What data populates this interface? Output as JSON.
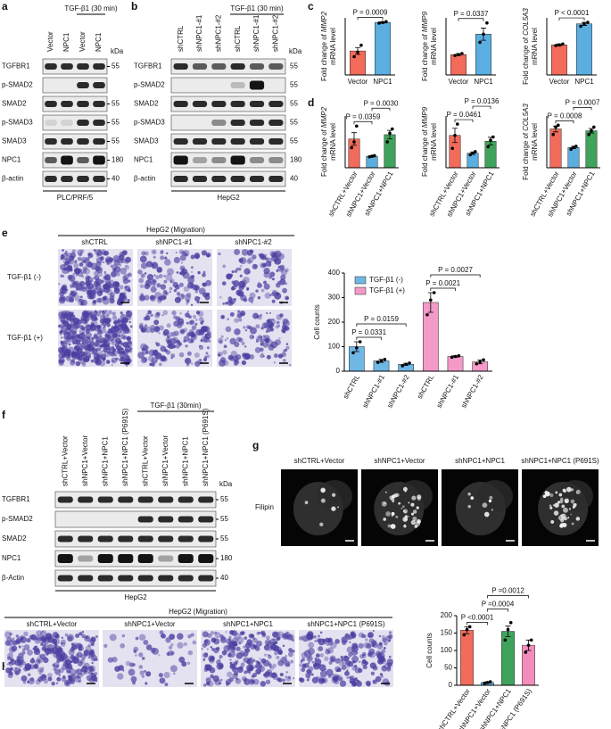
{
  "panels": {
    "a": {
      "letter": "a",
      "treatment": "TGF-β1 (30 min)",
      "lanes": [
        "Vector",
        "NPC1",
        "Vector",
        "NPC1"
      ],
      "unit": "kDa",
      "rows": [
        {
          "name": "TGFBR1",
          "kda": "55"
        },
        {
          "name": "p-SMAD2"
        },
        {
          "name": "SMAD2",
          "kda": "55"
        },
        {
          "name": "p-SMAD3",
          "kda": "55"
        },
        {
          "name": "SMAD3",
          "kda": "55"
        },
        {
          "name": "NPC1",
          "kda": "180"
        },
        {
          "name": "β-actin",
          "kda": "40"
        }
      ],
      "cell_line": "PLC/PRF/5"
    },
    "b": {
      "letter": "b",
      "treatment": "TGF-β1 (30 min)",
      "lanes": [
        "shCTRL",
        "shNPC1-#1",
        "shNPC1-#2",
        "shCTRL",
        "shNPC1-#1",
        "shNPC1-#2"
      ],
      "unit": "kDa",
      "rows": [
        {
          "name": "TGFBR1",
          "kda": "55"
        },
        {
          "name": "p-SMAD2",
          "kda": "55"
        },
        {
          "name": "SMAD2",
          "kda": "55"
        },
        {
          "name": "p-SMAD3",
          "kda": "55"
        },
        {
          "name": "SMAD3",
          "kda": "55"
        },
        {
          "name": "NPC1",
          "kda": "180"
        },
        {
          "name": "β-actin",
          "kda": "40"
        }
      ],
      "cell_line": "HepG2"
    },
    "c": {
      "letter": "c",
      "charts": [
        {
          "type": "bar",
          "ylabel": {
            "prefix": "Fold change of",
            "gene": "MMP2",
            "suffix": "mRNA level"
          },
          "categories": [
            "Vector",
            "NPC1"
          ],
          "values": [
            1.05,
            2.3
          ],
          "errors": [
            0.15,
            0.03
          ],
          "points": [
            [
              0.8,
              1.0,
              1.3
            ],
            [
              2.27,
              2.3,
              2.33
            ]
          ],
          "colors": [
            "#f26b5b",
            "#5aaee0"
          ],
          "ylim": [
            0,
            2.5
          ],
          "comparisons": [
            {
              "label": "P = 0.0009",
              "between": [
                0,
                1
              ]
            }
          ]
        },
        {
          "type": "bar",
          "ylabel": {
            "prefix": "Fold change of",
            "gene": "MMP9",
            "suffix": "mRNA level"
          },
          "categories": [
            "Vector",
            "NPC1"
          ],
          "values": [
            1.0,
            2.0
          ],
          "errors": [
            0.05,
            0.3
          ],
          "points": [
            [
              0.95,
              1.0,
              1.05
            ],
            [
              1.6,
              2.0,
              2.55
            ]
          ],
          "colors": [
            "#f26b5b",
            "#5aaee0"
          ],
          "ylim": [
            0,
            2.8
          ],
          "comparisons": [
            {
              "label": "P = 0.0337",
              "between": [
                0,
                1
              ]
            }
          ]
        },
        {
          "type": "bar",
          "ylabel": {
            "prefix": "Fold change of",
            "gene": "COL5A3",
            "suffix": "mRNA level"
          },
          "categories": [
            "Vector",
            "NPC1"
          ],
          "values": [
            1.0,
            1.7
          ],
          "errors": [
            0.03,
            0.05
          ],
          "points": [
            [
              0.98,
              1.0,
              1.03
            ],
            [
              1.62,
              1.7,
              1.75
            ]
          ],
          "colors": [
            "#f26b5b",
            "#5aaee0"
          ],
          "ylim": [
            0,
            1.9
          ],
          "comparisons": [
            {
              "label": "P < 0.0001",
              "between": [
                0,
                1
              ]
            }
          ]
        }
      ]
    },
    "d": {
      "letter": "d",
      "charts": [
        {
          "type": "bar",
          "ylabel": {
            "prefix": "Fold change of",
            "gene": "MMP2",
            "suffix": "mRNA level"
          },
          "categories": [
            "shCTRL+Vector",
            "shNPC1+Vector",
            "shNPC1+NPC1"
          ],
          "values": [
            1.0,
            0.4,
            1.15
          ],
          "errors": [
            0.22,
            0.02,
            0.15
          ],
          "points": [
            [
              0.7,
              0.9,
              1.45
            ],
            [
              0.38,
              0.4,
              0.42
            ],
            [
              0.9,
              1.2,
              1.35
            ]
          ],
          "colors": [
            "#f26b5b",
            "#5aaee0",
            "#3fa35b"
          ],
          "ylim": [
            0,
            1.8
          ],
          "comparisons": [
            {
              "label": "P = 0.0359",
              "between": [
                0,
                1
              ]
            },
            {
              "label": "P = 0.0030",
              "between": [
                1,
                2
              ]
            }
          ]
        },
        {
          "type": "bar",
          "ylabel": {
            "prefix": "Fold change of",
            "gene": "MMP9",
            "suffix": "mRNA level"
          },
          "categories": [
            "shCTRL+Vector",
            "shNPC1+Vector",
            "shNPC1+NPC1"
          ],
          "values": [
            1.0,
            0.45,
            0.82
          ],
          "errors": [
            0.22,
            0.04,
            0.12
          ],
          "points": [
            [
              0.6,
              1.0,
              1.35
            ],
            [
              0.4,
              0.45,
              0.5
            ],
            [
              0.65,
              0.85,
              0.95
            ]
          ],
          "colors": [
            "#f26b5b",
            "#5aaee0",
            "#3fa35b"
          ],
          "ylim": [
            0,
            1.6
          ],
          "comparisons": [
            {
              "label": "P = 0.0461",
              "between": [
                0,
                1
              ]
            },
            {
              "label": "P = 0.0136",
              "between": [
                1,
                2
              ]
            }
          ]
        },
        {
          "type": "bar",
          "ylabel": {
            "prefix": "Fold change of",
            "gene": "COL5A3",
            "suffix": "mRNA level"
          },
          "categories": [
            "shCTRL+Vector",
            "shNPC1+Vector",
            "shNPC1+NPC1"
          ],
          "values": [
            1.05,
            0.55,
            1.0
          ],
          "errors": [
            0.08,
            0.03,
            0.06
          ],
          "points": [
            [
              0.9,
              1.1,
              1.15
            ],
            [
              0.5,
              0.55,
              0.58
            ],
            [
              0.9,
              1.0,
              1.1
            ]
          ],
          "colors": [
            "#f26b5b",
            "#5aaee0",
            "#3fa35b"
          ],
          "ylim": [
            0,
            1.4
          ],
          "comparisons": [
            {
              "label": "P = 0.0008",
              "between": [
                0,
                1
              ]
            },
            {
              "label": "P = 0.0007",
              "between": [
                1,
                2
              ]
            }
          ]
        }
      ]
    },
    "e": {
      "letter": "e",
      "title": "HepG2 (Migration)",
      "columns": [
        "shCTRL",
        "shNPC1-#1",
        "shNPC1-#2"
      ],
      "rows": [
        "TGF-β1 (-)",
        "TGF-β1 (+)"
      ],
      "chart": {
        "type": "bar",
        "ylabel": "Cell counts",
        "categories": [
          "shCTRL",
          "shNPC1-#1",
          "shNPC1-#2",
          "shCTRL",
          "shNPC1-#1",
          "shNPC1-#2"
        ],
        "series": [
          {
            "name": "TGF-β1 (-)",
            "color": "#6fb7e5",
            "values": [
              100,
              42,
              28,
              null,
              null,
              null
            ],
            "errors": [
              20,
              6,
              4,
              null,
              null,
              null
            ],
            "points": [
              [
                75,
                95,
                120
              ],
              [
                36,
                42,
                48
              ],
              [
                22,
                28,
                33
              ],
              null,
              null,
              null
            ]
          },
          {
            "name": "TGF-β1 (+)",
            "color": "#f49ac8",
            "values": [
              null,
              null,
              null,
              280,
              60,
              38
            ],
            "errors": [
              null,
              null,
              null,
              40,
              3,
              8
            ],
            "points": [
              null,
              null,
              null,
              [
                230,
                290,
                320
              ],
              [
                57,
                60,
                63
              ],
              [
                30,
                38,
                46
              ]
            ]
          }
        ],
        "ylim": [
          0,
          400
        ],
        "yticks": [
          0,
          100,
          200,
          300,
          400
        ],
        "comparisons": [
          {
            "label": "P = 0.0331",
            "between": [
              0,
              1
            ]
          },
          {
            "label": "P = 0.0159",
            "between": [
              0,
              2
            ]
          },
          {
            "label": "P = 0.0021",
            "between": [
              3,
              4
            ]
          },
          {
            "label": "P = 0.0027",
            "between": [
              3,
              5
            ]
          }
        ]
      }
    },
    "f": {
      "letter": "f",
      "treatment": "TGF-β1 (30min)",
      "lanes": [
        "shCTRL+Vector",
        "shNPC1+Vector",
        "shNPC1+NPC1",
        "shNPC1+NPC1 (P691S)",
        "shCTRL+Vector",
        "shNPC1+Vector",
        "shNPC1+NPC1",
        "shNPC1+NPC1 (P691S)"
      ],
      "unit": "kDa",
      "rows": [
        {
          "name": "TGFBR1",
          "kda": "55"
        },
        {
          "name": "p-SMAD2",
          "kda": "55"
        },
        {
          "name": "SMAD2",
          "kda": "55"
        },
        {
          "name": "NPC1",
          "kda": "180"
        },
        {
          "name": "β-Actin",
          "kda": "40"
        }
      ],
      "cell_line": "HepG2"
    },
    "g": {
      "letter": "g",
      "columns": [
        "shCTRL+Vector",
        "shNPC1+Vector",
        "shNPC1+NPC1",
        "shNPC1+NPC1 (P691S)"
      ],
      "stain": "Filipin"
    },
    "h": {
      "letter": "h",
      "title": "HepG2 (Migration)",
      "columns": [
        "shCTRL+Vector",
        "shNPC1+Vector",
        "shNPC1+NPC1",
        "shNPC1+NPC1 (P691S)"
      ],
      "chart": {
        "type": "bar",
        "ylabel": "Cell counts",
        "categories": [
          "shCTRL+Vector",
          "shNPC1+Vector",
          "shNPC1+NPC1",
          "shNPC1+NPC1 (P691S)"
        ],
        "values": [
          158,
          8,
          155,
          115
        ],
        "errors": [
          10,
          2,
          15,
          15
        ],
        "points": [
          [
            145,
            160,
            168
          ],
          [
            6,
            8,
            10
          ],
          [
            130,
            160,
            180
          ],
          [
            95,
            115,
            130
          ]
        ],
        "colors": [
          "#f26b5b",
          "#5aaee0",
          "#3fa35b",
          "#f28dbb"
        ],
        "ylim": [
          0,
          200
        ],
        "yticks": [
          0,
          50,
          100,
          150,
          200
        ],
        "comparisons": [
          {
            "label": "P <0.0001",
            "between": [
              0,
              1
            ]
          },
          {
            "label": "P =0.0004",
            "between": [
              1,
              2
            ]
          },
          {
            "label": "P =0.0012",
            "between": [
              1,
              3
            ]
          }
        ]
      }
    }
  }
}
